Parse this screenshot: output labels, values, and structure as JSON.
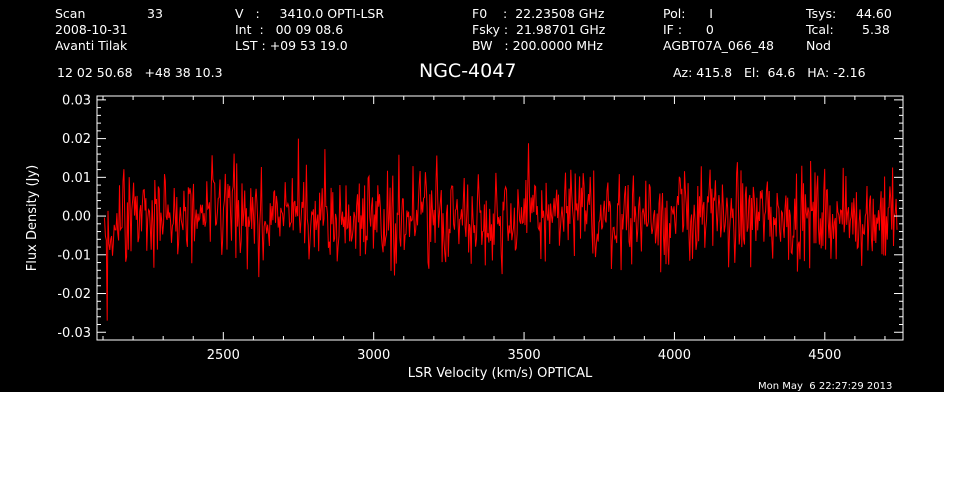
{
  "header": {
    "scan_label": "Scan",
    "scan_number": "33",
    "date": "2008-10-31",
    "observer": "Avanti Tilak",
    "velocity": "V   :     3410.0 OPTI-LSR",
    "integration": "Int  :   00 09 08.6",
    "lst": "LST : +09 53 19.0",
    "f0": "F0    :  22.23508 GHz",
    "fsky": "Fsky :  21.98701 GHz",
    "bw": "BW   : 200.0000 MHz",
    "pol": "Pol:      I",
    "if": "IF :      0",
    "project": "AGBT07A_066_48",
    "tsys_label": "Tsys:",
    "tsys_value": "44.60",
    "tcal_label": "Tcal:",
    "tcal_value": "5.38",
    "mode": "Nod",
    "coords": "12 02 50.68   +48 38 10.3",
    "az_el_ha": "Az: 415.8   El:  64.6   HA: -2.16",
    "source": "NGC-4047",
    "timestamp": "Mon May  6 22:27:29 2013"
  },
  "colors": {
    "background": "#000000",
    "axes": "#ffffff",
    "spectrum": "#ff0000"
  },
  "chart_data": {
    "type": "line",
    "xlabel": "LSR Velocity (km/s) OPTICAL",
    "ylabel": "Flux Density (Jy)",
    "xlim": [
      2080,
      4760
    ],
    "ylim": [
      -0.032,
      0.031
    ],
    "x_ticks": [
      2500,
      3000,
      3500,
      4000,
      4500
    ],
    "x_tick_labels": [
      "2500",
      "3000",
      "3500",
      "4000",
      "4500"
    ],
    "y_ticks": [
      -0.03,
      -0.02,
      -0.01,
      0.0,
      0.01,
      0.02,
      0.03
    ],
    "y_tick_labels": [
      "-0.03",
      "-0.02",
      "-0.01",
      "0.00",
      "0.01",
      "0.02",
      "0.03"
    ],
    "grid": false,
    "series": [
      {
        "x_start": 2105,
        "x_end": 4740,
        "points": 900,
        "mean": 0.0,
        "noise_rms": 0.006,
        "min": -0.027,
        "max": 0.02,
        "min_at_x": 2115,
        "max_at_x": 2750
      }
    ]
  }
}
